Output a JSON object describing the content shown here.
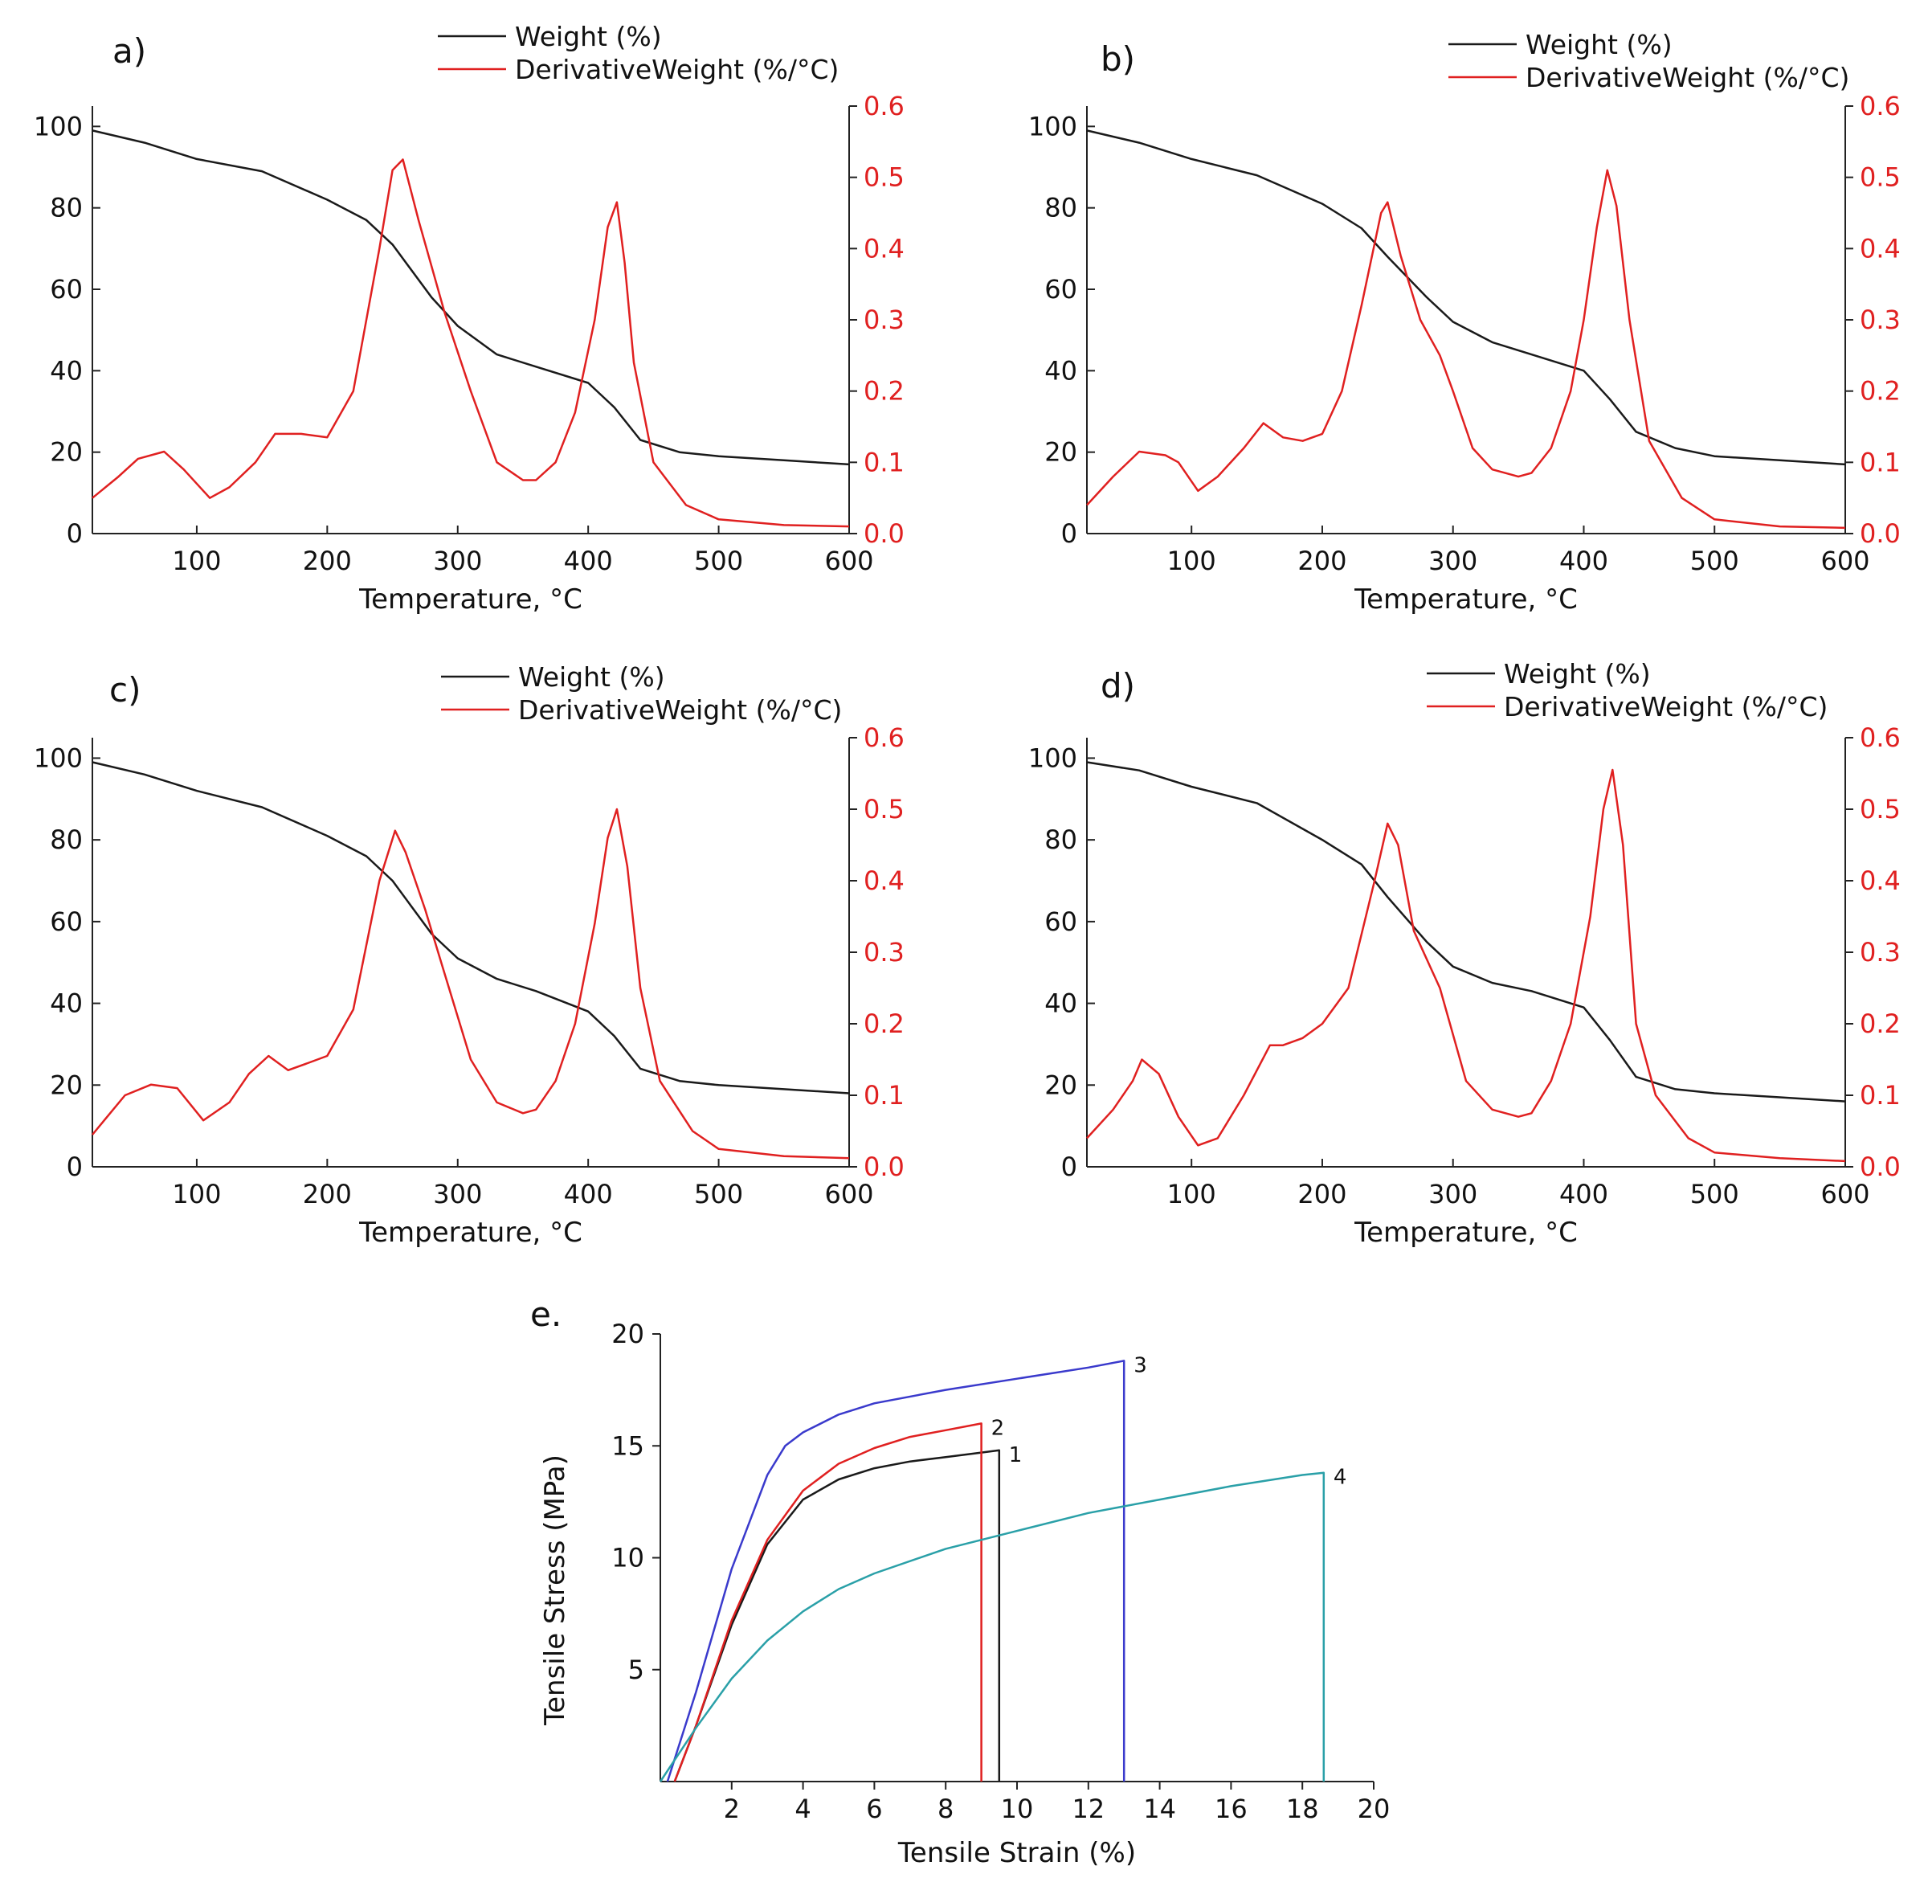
{
  "chart_data": [
    {
      "id": "a",
      "type": "line",
      "panel_label": "a)",
      "xlabel": "Temperature, °C",
      "ylabel_left": "",
      "ylabel_right": "",
      "xlim": [
        20,
        600
      ],
      "ylim_left": [
        0,
        105
      ],
      "ylim_right": [
        0,
        0.6
      ],
      "xticks": [
        100,
        200,
        300,
        400,
        500,
        600
      ],
      "yticks_left": [
        0,
        20,
        40,
        60,
        80,
        100
      ],
      "yticks_right": [
        0.0,
        0.1,
        0.2,
        0.3,
        0.4,
        0.5,
        0.6
      ],
      "legend_position": "top-right",
      "colors": {
        "weight": "#1a1a1a",
        "derivative": "#e02020"
      },
      "series": [
        {
          "name": "Weight (%)",
          "axis": "left",
          "x": [
            20,
            60,
            100,
            150,
            200,
            230,
            250,
            280,
            300,
            330,
            360,
            400,
            420,
            440,
            470,
            500,
            550,
            600
          ],
          "y": [
            99,
            96,
            92,
            89,
            82,
            77,
            71,
            58,
            51,
            44,
            41,
            37,
            31,
            23,
            20,
            19,
            18,
            17
          ]
        },
        {
          "name": "DerivativeWeight (%/°C)",
          "axis": "right",
          "x": [
            20,
            40,
            55,
            75,
            90,
            110,
            125,
            145,
            160,
            180,
            200,
            220,
            240,
            250,
            258,
            270,
            290,
            310,
            330,
            350,
            360,
            375,
            390,
            405,
            415,
            422,
            428,
            435,
            450,
            475,
            500,
            550,
            600
          ],
          "y": [
            0.05,
            0.08,
            0.105,
            0.115,
            0.09,
            0.05,
            0.065,
            0.1,
            0.14,
            0.14,
            0.135,
            0.2,
            0.4,
            0.51,
            0.525,
            0.44,
            0.31,
            0.2,
            0.1,
            0.075,
            0.075,
            0.1,
            0.17,
            0.3,
            0.43,
            0.465,
            0.38,
            0.24,
            0.1,
            0.04,
            0.02,
            0.012,
            0.01
          ]
        }
      ]
    },
    {
      "id": "b",
      "type": "line",
      "panel_label": "b)",
      "xlabel": "Temperature, °C",
      "ylabel_left": "",
      "ylabel_right": "",
      "xlim": [
        20,
        600
      ],
      "ylim_left": [
        0,
        105
      ],
      "ylim_right": [
        0,
        0.6
      ],
      "xticks": [
        100,
        200,
        300,
        400,
        500,
        600
      ],
      "yticks_left": [
        0,
        20,
        40,
        60,
        80,
        100
      ],
      "yticks_right": [
        0.0,
        0.1,
        0.2,
        0.3,
        0.4,
        0.5,
        0.6
      ],
      "legend_position": "top-right",
      "colors": {
        "weight": "#1a1a1a",
        "derivative": "#e02020"
      },
      "series": [
        {
          "name": "Weight (%)",
          "axis": "left",
          "x": [
            20,
            60,
            100,
            150,
            200,
            230,
            250,
            280,
            300,
            330,
            360,
            400,
            420,
            440,
            470,
            500,
            550,
            600
          ],
          "y": [
            99,
            96,
            92,
            88,
            81,
            75,
            68,
            58,
            52,
            47,
            44,
            40,
            33,
            25,
            21,
            19,
            18,
            17
          ]
        },
        {
          "name": "DerivativeWeight (%/°C)",
          "axis": "right",
          "x": [
            20,
            40,
            60,
            80,
            90,
            105,
            120,
            140,
            155,
            170,
            185,
            200,
            215,
            230,
            245,
            250,
            260,
            275,
            290,
            300,
            315,
            330,
            350,
            360,
            375,
            390,
            400,
            410,
            418,
            425,
            435,
            450,
            475,
            500,
            550,
            600
          ],
          "y": [
            0.04,
            0.08,
            0.115,
            0.11,
            0.1,
            0.06,
            0.08,
            0.12,
            0.155,
            0.135,
            0.13,
            0.14,
            0.2,
            0.32,
            0.45,
            0.465,
            0.39,
            0.3,
            0.25,
            0.2,
            0.12,
            0.09,
            0.08,
            0.085,
            0.12,
            0.2,
            0.3,
            0.43,
            0.51,
            0.46,
            0.3,
            0.13,
            0.05,
            0.02,
            0.01,
            0.008
          ]
        }
      ]
    },
    {
      "id": "c",
      "type": "line",
      "panel_label": "c)",
      "xlabel": "Temperature, °C",
      "ylabel_left": "",
      "ylabel_right": "",
      "xlim": [
        20,
        600
      ],
      "ylim_left": [
        0,
        105
      ],
      "ylim_right": [
        0,
        0.6
      ],
      "xticks": [
        100,
        200,
        300,
        400,
        500,
        600
      ],
      "yticks_left": [
        0,
        20,
        40,
        60,
        80,
        100
      ],
      "yticks_right": [
        0.0,
        0.1,
        0.2,
        0.3,
        0.4,
        0.5,
        0.6
      ],
      "legend_position": "top-right",
      "colors": {
        "weight": "#1a1a1a",
        "derivative": "#e02020"
      },
      "series": [
        {
          "name": "Weight (%)",
          "axis": "left",
          "x": [
            20,
            60,
            100,
            150,
            200,
            230,
            250,
            280,
            300,
            330,
            360,
            400,
            420,
            440,
            470,
            500,
            550,
            600
          ],
          "y": [
            99,
            96,
            92,
            88,
            81,
            76,
            70,
            57,
            51,
            46,
            43,
            38,
            32,
            24,
            21,
            20,
            19,
            18
          ]
        },
        {
          "name": "DerivativeWeight (%/°C)",
          "axis": "right",
          "x": [
            20,
            45,
            65,
            85,
            105,
            125,
            140,
            155,
            170,
            185,
            200,
            220,
            240,
            252,
            260,
            275,
            290,
            310,
            330,
            350,
            360,
            375,
            390,
            405,
            415,
            422,
            430,
            440,
            455,
            480,
            500,
            550,
            600
          ],
          "y": [
            0.045,
            0.1,
            0.115,
            0.11,
            0.065,
            0.09,
            0.13,
            0.155,
            0.135,
            0.145,
            0.155,
            0.22,
            0.4,
            0.47,
            0.44,
            0.36,
            0.27,
            0.15,
            0.09,
            0.075,
            0.08,
            0.12,
            0.2,
            0.34,
            0.46,
            0.5,
            0.42,
            0.25,
            0.12,
            0.05,
            0.025,
            0.015,
            0.012
          ]
        }
      ]
    },
    {
      "id": "d",
      "type": "line",
      "panel_label": "d)",
      "xlabel": "Temperature, °C",
      "ylabel_left": "",
      "ylabel_right": "",
      "xlim": [
        20,
        600
      ],
      "ylim_left": [
        0,
        105
      ],
      "ylim_right": [
        0,
        0.6
      ],
      "xticks": [
        100,
        200,
        300,
        400,
        500,
        600
      ],
      "yticks_left": [
        0,
        20,
        40,
        60,
        80,
        100
      ],
      "yticks_right": [
        0.0,
        0.1,
        0.2,
        0.3,
        0.4,
        0.5,
        0.6
      ],
      "legend_position": "top-right",
      "colors": {
        "weight": "#1a1a1a",
        "derivative": "#e02020"
      },
      "series": [
        {
          "name": "Weight (%)",
          "axis": "left",
          "x": [
            20,
            60,
            100,
            150,
            200,
            230,
            250,
            280,
            300,
            330,
            360,
            400,
            420,
            440,
            470,
            500,
            550,
            600
          ],
          "y": [
            99,
            97,
            93,
            89,
            80,
            74,
            66,
            55,
            49,
            45,
            43,
            39,
            31,
            22,
            19,
            18,
            17,
            16
          ]
        },
        {
          "name": "DerivativeWeight (%/°C)",
          "axis": "right",
          "x": [
            20,
            40,
            55,
            62,
            75,
            90,
            105,
            120,
            140,
            160,
            170,
            185,
            200,
            220,
            240,
            250,
            258,
            270,
            290,
            310,
            330,
            350,
            360,
            375,
            390,
            405,
            415,
            422,
            430,
            440,
            455,
            480,
            500,
            550,
            600
          ],
          "y": [
            0.04,
            0.08,
            0.12,
            0.15,
            0.13,
            0.07,
            0.03,
            0.04,
            0.1,
            0.17,
            0.17,
            0.18,
            0.2,
            0.25,
            0.4,
            0.48,
            0.45,
            0.33,
            0.25,
            0.12,
            0.08,
            0.07,
            0.075,
            0.12,
            0.2,
            0.35,
            0.5,
            0.555,
            0.45,
            0.2,
            0.1,
            0.04,
            0.02,
            0.012,
            0.008
          ]
        }
      ]
    },
    {
      "id": "e",
      "type": "line",
      "panel_label": "e.",
      "xlabel": "Tensile Strain (%)",
      "ylabel": "Tensile Stress (MPa)",
      "xlim": [
        0,
        20
      ],
      "ylim": [
        0,
        20
      ],
      "xticks": [
        2,
        4,
        6,
        8,
        10,
        12,
        14,
        16,
        18,
        20
      ],
      "yticks": [
        5,
        10,
        15,
        20
      ],
      "legend_position": "none",
      "series": [
        {
          "name": "1",
          "color": "#1a1a1a",
          "x": [
            0.4,
            1,
            2,
            3,
            4,
            5,
            6,
            7,
            8,
            9,
            9.5,
            9.5
          ],
          "y": [
            0,
            2.5,
            7,
            10.6,
            12.6,
            13.5,
            14,
            14.3,
            14.5,
            14.7,
            14.8,
            0
          ]
        },
        {
          "name": "2",
          "color": "#e02020",
          "x": [
            0.4,
            1,
            2,
            3,
            4,
            5,
            6,
            7,
            8,
            9,
            9,
            9
          ],
          "y": [
            0,
            2.5,
            7.2,
            10.8,
            13,
            14.2,
            14.9,
            15.4,
            15.7,
            16,
            16,
            0
          ]
        },
        {
          "name": "3",
          "color": "#3a3acc",
          "x": [
            0.2,
            1,
            2,
            3,
            3.5,
            4,
            5,
            6,
            8,
            10,
            12,
            13,
            13,
            13
          ],
          "y": [
            0,
            4,
            9.5,
            13.7,
            15,
            15.6,
            16.4,
            16.9,
            17.5,
            18,
            18.5,
            18.8,
            18.8,
            0
          ]
        },
        {
          "name": "4",
          "color": "#2aa0a8",
          "x": [
            0,
            1,
            2,
            3,
            4,
            5,
            6,
            8,
            10,
            12,
            14,
            16,
            18,
            18.6,
            18.6
          ],
          "y": [
            0,
            2.4,
            4.6,
            6.3,
            7.6,
            8.6,
            9.3,
            10.4,
            11.2,
            12,
            12.6,
            13.2,
            13.7,
            13.8,
            0
          ]
        }
      ]
    }
  ]
}
